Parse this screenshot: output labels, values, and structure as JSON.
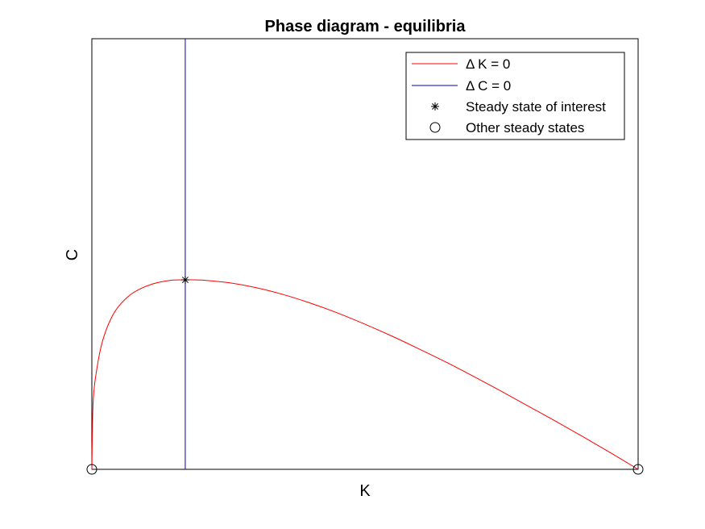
{
  "chart_data": {
    "type": "line",
    "title": "Phase diagram - equilibria",
    "xlabel": "K",
    "ylabel": "C",
    "xlim": [
      0,
      1
    ],
    "ylim": [
      0,
      1
    ],
    "ticks_shown": false,
    "grid": false,
    "legend_placement": "top-right",
    "series": [
      {
        "name": "Δ K = 0",
        "color": "#ff0000",
        "marker": "none",
        "x": [
          0,
          0.0025,
          0.01,
          0.02,
          0.035,
          0.05,
          0.07,
          0.09,
          0.11,
          0.13,
          0.15,
          0.171,
          0.2,
          0.25,
          0.3,
          0.35,
          0.4,
          0.45,
          0.5,
          0.55,
          0.6,
          0.65,
          0.7,
          0.75,
          0.8,
          0.85,
          0.9,
          0.95,
          1.0
        ],
        "y": [
          0,
          0.16,
          0.24,
          0.3,
          0.35,
          0.38,
          0.405,
          0.42,
          0.43,
          0.436,
          0.4395,
          0.44,
          0.4395,
          0.4335,
          0.422,
          0.406,
          0.386,
          0.363,
          0.337,
          0.309,
          0.279,
          0.248,
          0.215,
          0.181,
          0.146,
          0.111,
          0.075,
          0.038,
          0
        ]
      },
      {
        "name": "Δ C = 0",
        "color": "#0000aa",
        "marker": "none",
        "x": [
          0.171,
          0.171
        ],
        "y": [
          0,
          1
        ]
      },
      {
        "name": "Steady state of interest",
        "color": "#000000",
        "marker": "asterisk",
        "x": [
          0.171
        ],
        "y": [
          0.44
        ]
      },
      {
        "name": "Other steady states",
        "color": "#000000",
        "marker": "circle",
        "x": [
          0,
          1
        ],
        "y": [
          0,
          0
        ]
      }
    ]
  }
}
